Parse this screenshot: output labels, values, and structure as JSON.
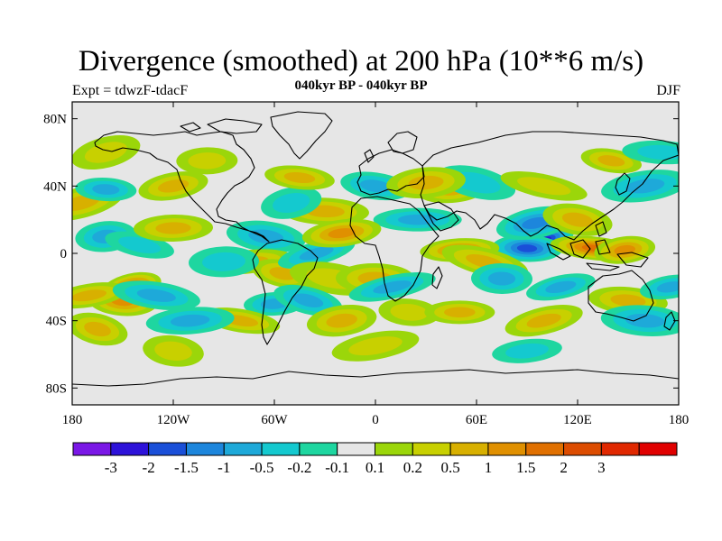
{
  "header": {
    "title": "Divergence (smoothed) at 200 hPa (10**6 m/s)",
    "subtitle": "040kyr BP - 040kyr BP",
    "experiment": "Expt = tdwzF-tdacF",
    "season": "DJF"
  },
  "map": {
    "projection": "cylindrical equidistant",
    "background_color": "#e6e6e6",
    "lon_range": [
      -180,
      180
    ],
    "lat_range": [
      -90,
      90
    ],
    "lat_ticks": [
      {
        "value": 80,
        "label": "80N"
      },
      {
        "value": 40,
        "label": "40N"
      },
      {
        "value": 0,
        "label": "0"
      },
      {
        "value": -40,
        "label": "40S"
      },
      {
        "value": -80,
        "label": "80S"
      }
    ],
    "lon_ticks": [
      {
        "value": -180,
        "label": "180"
      },
      {
        "value": -120,
        "label": "120W"
      },
      {
        "value": -60,
        "label": "60W"
      },
      {
        "value": 0,
        "label": "0"
      },
      {
        "value": 60,
        "label": "60E"
      },
      {
        "value": 120,
        "label": "120E"
      },
      {
        "value": 180,
        "label": "180"
      }
    ]
  },
  "colorbar": {
    "colors": [
      "#7a17e6",
      "#2d12d9",
      "#1a4fd8",
      "#1d86dc",
      "#1ea9d9",
      "#14c9cf",
      "#1ed6a0",
      "#e6e6e6",
      "#9bd60a",
      "#c8d000",
      "#d8b000",
      "#e09000",
      "#e07000",
      "#dc4c00",
      "#e02800",
      "#e00000"
    ],
    "labels": [
      "-3",
      "-2",
      "-1.5",
      "-1",
      "-0.5",
      "-0.2",
      "-0.1",
      "0.1",
      "0.2",
      "0.5",
      "1",
      "1.5",
      "2",
      "3"
    ]
  },
  "chart_data": {
    "type": "heatmap",
    "title": "Divergence (smoothed) at 200 hPa (10**6 m/s)",
    "subtitle": "040kyr BP - 040kyr BP",
    "levels": [
      -3,
      -2,
      -1.5,
      -1,
      -0.5,
      -0.2,
      -0.1,
      0.1,
      0.2,
      0.5,
      1,
      1.5,
      2,
      3
    ],
    "ylim": [
      -90,
      90
    ],
    "xlim": [
      -180,
      180
    ],
    "features": [
      {
        "lon": 100,
        "lat": 8,
        "value": -2.5
      },
      {
        "lon": 90,
        "lat": 3,
        "value": -1.5
      },
      {
        "lon": 95,
        "lat": 18,
        "value": -1
      },
      {
        "lon": 130,
        "lat": 3,
        "value": 1.5
      },
      {
        "lon": 148,
        "lat": 2,
        "value": 1
      },
      {
        "lon": 120,
        "lat": 20,
        "value": 0.5
      },
      {
        "lon": 50,
        "lat": 2,
        "value": 1
      },
      {
        "lon": 65,
        "lat": -5,
        "value": 0.5
      },
      {
        "lon": 75,
        "lat": -15,
        "value": -0.5
      },
      {
        "lon": 110,
        "lat": -20,
        "value": -0.5
      },
      {
        "lon": 150,
        "lat": -28,
        "value": 0.5
      },
      {
        "lon": 160,
        "lat": 40,
        "value": -0.5
      },
      {
        "lon": 140,
        "lat": 55,
        "value": 0.5
      },
      {
        "lon": 45,
        "lat": 38,
        "value": 0.5
      },
      {
        "lon": 60,
        "lat": 42,
        "value": -0.2
      },
      {
        "lon": 25,
        "lat": 20,
        "value": -0.5
      },
      {
        "lon": -145,
        "lat": -20,
        "value": 1.5
      },
      {
        "lon": -150,
        "lat": -28,
        "value": 1
      },
      {
        "lon": -170,
        "lat": -25,
        "value": 0.5
      },
      {
        "lon": -130,
        "lat": -25,
        "value": -0.5
      },
      {
        "lon": -160,
        "lat": 10,
        "value": -0.5
      },
      {
        "lon": -140,
        "lat": 5,
        "value": -0.2
      },
      {
        "lon": -120,
        "lat": 15,
        "value": 0.5
      },
      {
        "lon": -175,
        "lat": 30,
        "value": 0.5
      },
      {
        "lon": -160,
        "lat": 38,
        "value": -0.5
      },
      {
        "lon": -120,
        "lat": 40,
        "value": 0.5
      },
      {
        "lon": -65,
        "lat": 10,
        "value": -0.5
      },
      {
        "lon": -75,
        "lat": -5,
        "value": 0.5
      },
      {
        "lon": -55,
        "lat": -12,
        "value": 0.5
      },
      {
        "lon": -90,
        "lat": -5,
        "value": -0.2
      },
      {
        "lon": -35,
        "lat": 0,
        "value": -0.5
      },
      {
        "lon": -30,
        "lat": 25,
        "value": 0.5
      },
      {
        "lon": -50,
        "lat": 30,
        "value": -0.2
      },
      {
        "lon": -45,
        "lat": 45,
        "value": 0.5
      },
      {
        "lon": -20,
        "lat": 12,
        "value": 1
      },
      {
        "lon": -25,
        "lat": -15,
        "value": 0.2
      },
      {
        "lon": -60,
        "lat": -30,
        "value": -0.5
      },
      {
        "lon": -40,
        "lat": -28,
        "value": -0.5
      },
      {
        "lon": 0,
        "lat": -15,
        "value": 0.5
      },
      {
        "lon": 10,
        "lat": -20,
        "value": -0.5
      },
      {
        "lon": 20,
        "lat": -35,
        "value": 0.2
      },
      {
        "lon": -20,
        "lat": -40,
        "value": 0.5
      },
      {
        "lon": -80,
        "lat": -40,
        "value": 0.5
      },
      {
        "lon": -110,
        "lat": -40,
        "value": -0.5
      },
      {
        "lon": -165,
        "lat": -45,
        "value": 0.5
      },
      {
        "lon": 50,
        "lat": -35,
        "value": 0.5
      },
      {
        "lon": 100,
        "lat": -40,
        "value": 0.5
      },
      {
        "lon": 160,
        "lat": -40,
        "value": -0.5
      },
      {
        "lon": 175,
        "lat": -20,
        "value": -0.5
      },
      {
        "lon": 0,
        "lat": 40,
        "value": -0.5
      },
      {
        "lon": 30,
        "lat": 42,
        "value": 0.5
      },
      {
        "lon": 100,
        "lat": 40,
        "value": 0.2
      },
      {
        "lon": -100,
        "lat": 55,
        "value": 0.2
      },
      {
        "lon": -160,
        "lat": 60,
        "value": 0.2
      },
      {
        "lon": 170,
        "lat": 60,
        "value": -0.2
      },
      {
        "lon": 0,
        "lat": -55,
        "value": 0.2
      },
      {
        "lon": -120,
        "lat": -58,
        "value": 0.2
      },
      {
        "lon": 90,
        "lat": -58,
        "value": -0.2
      }
    ]
  }
}
